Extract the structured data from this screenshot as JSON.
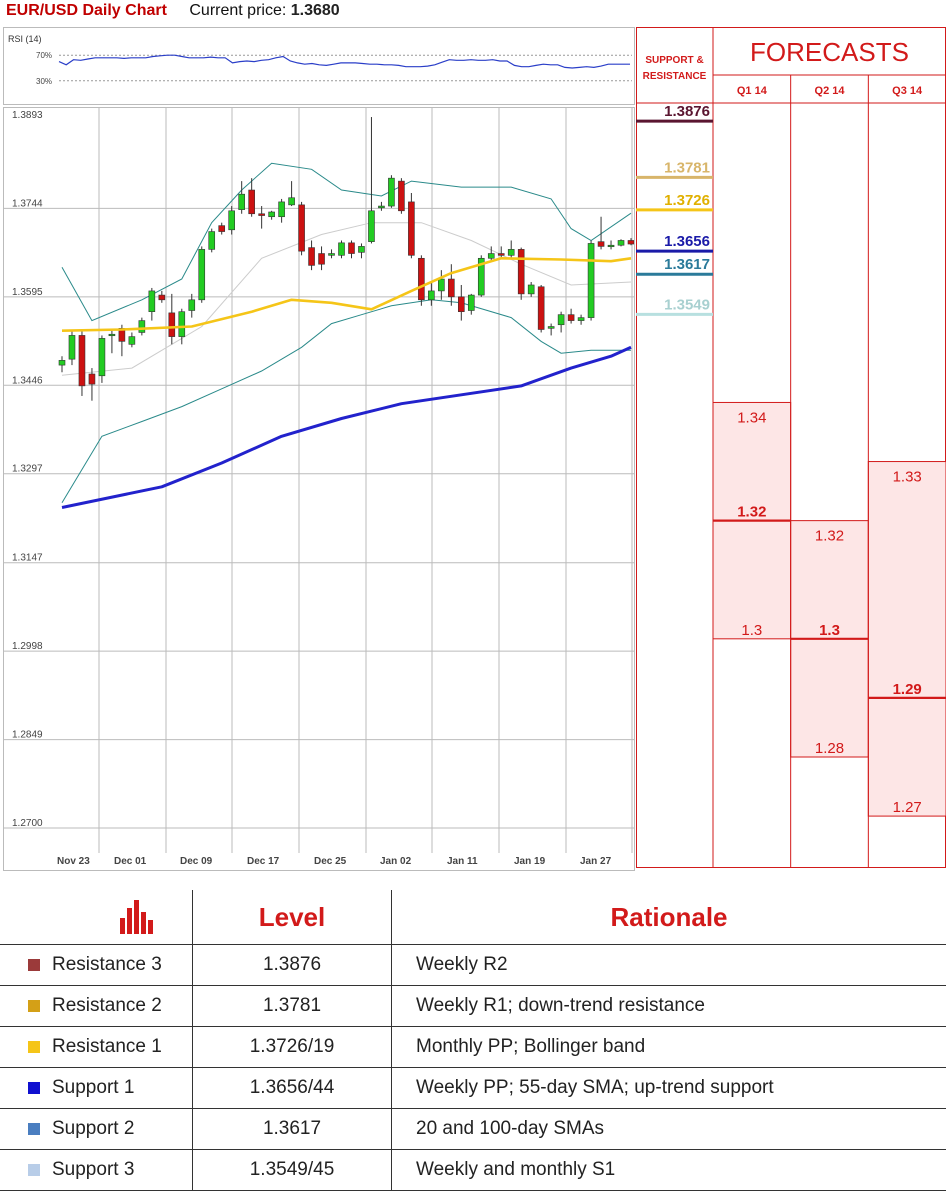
{
  "header": {
    "title": "EUR/USD Daily Chart",
    "price_label": "Current price:",
    "price_value": "1.3680"
  },
  "colors": {
    "title_red": "#c00000",
    "bull_candle": "#22cc22",
    "bear_candle": "#cc1111",
    "sma20_100": "#cccccc",
    "sma55": "#f5c518",
    "sma200": "#2222cc",
    "bollinger": "#2a8a8a",
    "forecast_fill": "#fde6e6",
    "forecast_red": "#d21a1a"
  },
  "chart_data": [
    {
      "type": "line",
      "title": "RSI (14)",
      "yticks": [
        "70%",
        "30%"
      ],
      "ylim": [
        0,
        100
      ],
      "series": [
        {
          "values": [
            60,
            55,
            63,
            62,
            64,
            66,
            66,
            66,
            66,
            65,
            66,
            66,
            66,
            68,
            69,
            70,
            70,
            68,
            66,
            66,
            66,
            67,
            66,
            66,
            58,
            60,
            61,
            60,
            62,
            63,
            66,
            68,
            61,
            58,
            56,
            57,
            55,
            54,
            56,
            58,
            58,
            58,
            57,
            56,
            56,
            55,
            55,
            54,
            52,
            52,
            52,
            53,
            55,
            59,
            63,
            62,
            62,
            63,
            62,
            62,
            63,
            61,
            61,
            54,
            52,
            52,
            54,
            56,
            55,
            55,
            51,
            50,
            51,
            52,
            51,
            53,
            56,
            56,
            56,
            56
          ]
        }
      ]
    },
    {
      "type": "candlestick",
      "title": "EUR/USD Daily Chart",
      "ylim": [
        1.27,
        1.3893
      ],
      "yticks": [
        "1.3893",
        "1.3744",
        "1.3595",
        "1.3446",
        "1.3297",
        "1.3147",
        "1.2998",
        "1.2849",
        "1.2700"
      ],
      "xticks": [
        "Nov 23",
        "Dec 01",
        "Dec 09",
        "Dec 17",
        "Dec 25",
        "Jan 02",
        "Jan 11",
        "Jan 19",
        "Jan 27"
      ],
      "candles": [
        {
          "o": 1.348,
          "h": 1.3495,
          "l": 1.3468,
          "c": 1.3488
        },
        {
          "o": 1.349,
          "h": 1.354,
          "l": 1.348,
          "c": 1.353
        },
        {
          "o": 1.353,
          "h": 1.354,
          "l": 1.3428,
          "c": 1.3445
        },
        {
          "o": 1.3465,
          "h": 1.3475,
          "l": 1.342,
          "c": 1.3448
        },
        {
          "o": 1.3462,
          "h": 1.353,
          "l": 1.345,
          "c": 1.3525
        },
        {
          "o": 1.3532,
          "h": 1.354,
          "l": 1.35,
          "c": 1.3532
        },
        {
          "o": 1.3542,
          "h": 1.3548,
          "l": 1.3495,
          "c": 1.352
        },
        {
          "o": 1.3515,
          "h": 1.3535,
          "l": 1.351,
          "c": 1.3528
        },
        {
          "o": 1.3535,
          "h": 1.356,
          "l": 1.353,
          "c": 1.3555
        },
        {
          "o": 1.357,
          "h": 1.361,
          "l": 1.3555,
          "c": 1.3605
        },
        {
          "o": 1.3598,
          "h": 1.3605,
          "l": 1.3585,
          "c": 1.359
        },
        {
          "o": 1.3568,
          "h": 1.36,
          "l": 1.3515,
          "c": 1.3528
        },
        {
          "o": 1.3528,
          "h": 1.3575,
          "l": 1.3515,
          "c": 1.357
        },
        {
          "o": 1.3572,
          "h": 1.36,
          "l": 1.356,
          "c": 1.359
        },
        {
          "o": 1.359,
          "h": 1.368,
          "l": 1.3585,
          "c": 1.3675
        },
        {
          "o": 1.3675,
          "h": 1.371,
          "l": 1.367,
          "c": 1.3705
        },
        {
          "o": 1.3715,
          "h": 1.372,
          "l": 1.37,
          "c": 1.3705
        },
        {
          "o": 1.3708,
          "h": 1.3748,
          "l": 1.37,
          "c": 1.374
        },
        {
          "o": 1.3742,
          "h": 1.379,
          "l": 1.3735,
          "c": 1.3768
        },
        {
          "o": 1.3775,
          "h": 1.3795,
          "l": 1.373,
          "c": 1.3735
        },
        {
          "o": 1.3735,
          "h": 1.3748,
          "l": 1.371,
          "c": 1.3732
        },
        {
          "o": 1.373,
          "h": 1.374,
          "l": 1.3725,
          "c": 1.3738
        },
        {
          "o": 1.373,
          "h": 1.376,
          "l": 1.372,
          "c": 1.3755
        },
        {
          "o": 1.375,
          "h": 1.379,
          "l": 1.3748,
          "c": 1.3762
        },
        {
          "o": 1.375,
          "h": 1.3755,
          "l": 1.3665,
          "c": 1.3672
        },
        {
          "o": 1.3678,
          "h": 1.369,
          "l": 1.364,
          "c": 1.3648
        },
        {
          "o": 1.3668,
          "h": 1.368,
          "l": 1.364,
          "c": 1.365
        },
        {
          "o": 1.3665,
          "h": 1.3675,
          "l": 1.366,
          "c": 1.3668
        },
        {
          "o": 1.3665,
          "h": 1.369,
          "l": 1.366,
          "c": 1.3686
        },
        {
          "o": 1.3686,
          "h": 1.369,
          "l": 1.366,
          "c": 1.3668
        },
        {
          "o": 1.367,
          "h": 1.3685,
          "l": 1.366,
          "c": 1.368
        },
        {
          "o": 1.3688,
          "h": 1.3898,
          "l": 1.3685,
          "c": 1.374
        },
        {
          "o": 1.3745,
          "h": 1.3755,
          "l": 1.374,
          "c": 1.3748
        },
        {
          "o": 1.3748,
          "h": 1.38,
          "l": 1.3745,
          "c": 1.3795
        },
        {
          "o": 1.379,
          "h": 1.3795,
          "l": 1.3735,
          "c": 1.374
        },
        {
          "o": 1.3755,
          "h": 1.377,
          "l": 1.366,
          "c": 1.3665
        },
        {
          "o": 1.366,
          "h": 1.3665,
          "l": 1.358,
          "c": 1.359
        },
        {
          "o": 1.359,
          "h": 1.362,
          "l": 1.358,
          "c": 1.3605
        },
        {
          "o": 1.3605,
          "h": 1.364,
          "l": 1.359,
          "c": 1.3625
        },
        {
          "o": 1.3625,
          "h": 1.365,
          "l": 1.358,
          "c": 1.3595
        },
        {
          "o": 1.3595,
          "h": 1.3615,
          "l": 1.3555,
          "c": 1.357
        },
        {
          "o": 1.3572,
          "h": 1.36,
          "l": 1.3565,
          "c": 1.3598
        },
        {
          "o": 1.3598,
          "h": 1.3665,
          "l": 1.3595,
          "c": 1.366
        },
        {
          "o": 1.366,
          "h": 1.368,
          "l": 1.3655,
          "c": 1.3668
        },
        {
          "o": 1.3668,
          "h": 1.368,
          "l": 1.366,
          "c": 1.3665
        },
        {
          "o": 1.3665,
          "h": 1.369,
          "l": 1.366,
          "c": 1.3675
        },
        {
          "o": 1.3675,
          "h": 1.3678,
          "l": 1.359,
          "c": 1.36
        },
        {
          "o": 1.36,
          "h": 1.362,
          "l": 1.3595,
          "c": 1.3615
        },
        {
          "o": 1.3612,
          "h": 1.3615,
          "l": 1.3535,
          "c": 1.354
        },
        {
          "o": 1.3542,
          "h": 1.355,
          "l": 1.353,
          "c": 1.3545
        },
        {
          "o": 1.3548,
          "h": 1.357,
          "l": 1.3535,
          "c": 1.3565
        },
        {
          "o": 1.3565,
          "h": 1.3575,
          "l": 1.355,
          "c": 1.3555
        },
        {
          "o": 1.3555,
          "h": 1.3565,
          "l": 1.3548,
          "c": 1.356
        },
        {
          "o": 1.356,
          "h": 1.369,
          "l": 1.3555,
          "c": 1.3685
        },
        {
          "o": 1.3688,
          "h": 1.373,
          "l": 1.3675,
          "c": 1.368
        },
        {
          "o": 1.368,
          "h": 1.369,
          "l": 1.3675,
          "c": 1.3682
        },
        {
          "o": 1.3682,
          "h": 1.3692,
          "l": 1.368,
          "c": 1.369
        },
        {
          "o": 1.369,
          "h": 1.3694,
          "l": 1.3682,
          "c": 1.3684
        }
      ],
      "lines": [
        {
          "id": "sma20_100",
          "points": [
            [
              0,
              1.3463
            ],
            [
              7,
              1.3475
            ],
            [
              14,
              1.3545
            ],
            [
              20,
              1.366
            ],
            [
              26,
              1.37
            ],
            [
              31,
              1.372
            ],
            [
              36,
              1.372
            ],
            [
              41,
              1.369
            ],
            [
              46,
              1.365
            ],
            [
              51,
              1.3615
            ],
            [
              57,
              1.362
            ]
          ]
        },
        {
          "id": "sma55",
          "points": [
            [
              0,
              1.3538
            ],
            [
              6,
              1.354
            ],
            [
              13,
              1.3545
            ],
            [
              19,
              1.357
            ],
            [
              23,
              1.359
            ],
            [
              27,
              1.3585
            ],
            [
              31,
              1.3574
            ],
            [
              35,
              1.3605
            ],
            [
              39,
              1.3635
            ],
            [
              44,
              1.366
            ],
            [
              50,
              1.3658
            ],
            [
              55,
              1.3655
            ],
            [
              57,
              1.366
            ]
          ]
        },
        {
          "id": "sma200",
          "points": [
            [
              0,
              1.324
            ],
            [
              10,
              1.3275
            ],
            [
              16,
              1.3315
            ],
            [
              22,
              1.336
            ],
            [
              28,
              1.339
            ],
            [
              34,
              1.3415
            ],
            [
              40,
              1.343
            ],
            [
              46,
              1.3445
            ],
            [
              51,
              1.3475
            ],
            [
              55,
              1.3495
            ],
            [
              57,
              1.351
            ]
          ]
        },
        {
          "id": "bb_upper",
          "points": [
            [
              0,
              1.3645
            ],
            [
              3,
              1.3555
            ],
            [
              8,
              1.359
            ],
            [
              12,
              1.3625
            ],
            [
              15,
              1.372
            ],
            [
              18,
              1.3775
            ],
            [
              21,
              1.382
            ],
            [
              25,
              1.381
            ],
            [
              28,
              1.3775
            ],
            [
              32,
              1.3765
            ],
            [
              35,
              1.379
            ],
            [
              40,
              1.378
            ],
            [
              45,
              1.378
            ],
            [
              49,
              1.376
            ],
            [
              51,
              1.371
            ],
            [
              53,
              1.369
            ],
            [
              57,
              1.3736
            ]
          ]
        },
        {
          "id": "bb_lower",
          "points": [
            [
              0,
              1.3248
            ],
            [
              4,
              1.336
            ],
            [
              8,
              1.3385
            ],
            [
              12,
              1.341
            ],
            [
              16,
              1.344
            ],
            [
              20,
              1.347
            ],
            [
              24,
              1.351
            ],
            [
              27,
              1.355
            ],
            [
              30,
              1.3565
            ],
            [
              33,
              1.358
            ],
            [
              37,
              1.359
            ],
            [
              40,
              1.3585
            ],
            [
              45,
              1.356
            ],
            [
              48,
              1.352
            ],
            [
              50,
              1.35
            ],
            [
              53,
              1.3505
            ],
            [
              57,
              1.3505
            ]
          ]
        }
      ]
    }
  ],
  "forecasts": {
    "title": "FORECASTS",
    "sr_label_1": "SUPPORT &",
    "sr_label_2": "RESISTANCE",
    "columns": [
      "Q1 14",
      "Q2 14",
      "Q3 14"
    ],
    "sr_levels": [
      {
        "value": "1.3876",
        "color": "#5a1530",
        "text_color": "#5a1530",
        "line": true
      },
      {
        "value": "1.3781",
        "color": "#d8b56a",
        "text_color": "#d8b56a",
        "line": true
      },
      {
        "value": "1.3726",
        "color": "#f5c518",
        "text_color": "#e0b000",
        "line": true
      },
      {
        "value": "1.3656",
        "color": "#1a1aa8",
        "text_color": "#1a1aa8",
        "line": true
      },
      {
        "value": "1.3617",
        "color": "#2a7a9a",
        "text_color": "#2a7a9a",
        "line": true
      },
      {
        "value": "1.3549",
        "color": "#b8e0e0",
        "text_color": "#a8d0d0",
        "line": true
      }
    ],
    "ranges": [
      {
        "col": 0,
        "high": "1.34",
        "mid": "1.32",
        "low": "1.3"
      },
      {
        "col": 1,
        "high": "1.32",
        "mid": "1.3",
        "low": "1.28"
      },
      {
        "col": 2,
        "high": "1.33",
        "mid": "1.29",
        "low": "1.27"
      }
    ],
    "scale": {
      "top_value": 1.39,
      "bottom_value": 1.258
    }
  },
  "table": {
    "headers": {
      "level": "Level",
      "rationale": "Rationale"
    },
    "rows": [
      {
        "name": "Resistance 3",
        "level": "1.3876",
        "rationale": "Weekly R2",
        "color": "#9b3a3a"
      },
      {
        "name": "Resistance 2",
        "level": "1.3781",
        "rationale": "Weekly R1; down-trend resistance",
        "color": "#d4a017"
      },
      {
        "name": "Resistance 1",
        "level": "1.3726/19",
        "rationale": "Monthly PP; Bollinger band",
        "color": "#f5c518"
      },
      {
        "name": "Support 1",
        "level": "1.3656/44",
        "rationale": "Weekly PP; 55-day SMA; up-trend support",
        "color": "#1010d0"
      },
      {
        "name": "Support 2",
        "level": "1.3617",
        "rationale": "20 and 100-day SMAs",
        "color": "#4a7ec0"
      },
      {
        "name": "Support 3",
        "level": "1.3549/45",
        "rationale": "Weekly and monthly S1",
        "color": "#b8cde8"
      }
    ]
  }
}
